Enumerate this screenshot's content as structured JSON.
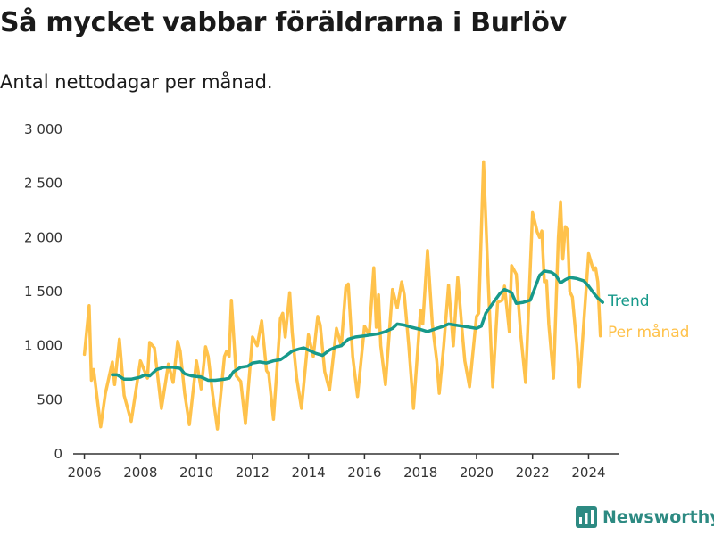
{
  "header": {
    "title": "Så mycket vabbar föräldrarna i Burlöv",
    "subtitle": "Antal nettodagar per månad."
  },
  "brand": {
    "name": "Newsworthy",
    "logo_icon": "bar-chart-logo-icon",
    "color": "#2d8a82"
  },
  "colors": {
    "monthly": "#ffc24b",
    "trend": "#17998a",
    "axis": "#333333",
    "tick_text": "#333333"
  },
  "chart_data": {
    "type": "line",
    "title": "Så mycket vabbar föräldrarna i Burlöv",
    "subtitle": "Antal nettodagar per månad.",
    "xlabel": "",
    "ylabel": "",
    "xlim": [
      2005.6,
      2025.1
    ],
    "ylim": [
      0,
      3000
    ],
    "grid": false,
    "x_ticks": [
      2006,
      2008,
      2010,
      2012,
      2014,
      2016,
      2018,
      2020,
      2022,
      2024
    ],
    "x_tick_labels": [
      "2006",
      "2008",
      "2010",
      "2012",
      "2014",
      "2016",
      "2018",
      "2020",
      "2022",
      "2024"
    ],
    "y_ticks": [
      0,
      500,
      1000,
      1500,
      2000,
      2500,
      3000
    ],
    "y_tick_labels": [
      "0",
      "500",
      "1 000",
      "1 500",
      "2 000",
      "2 500",
      "3 000"
    ],
    "legend_placement": "labels at line ends, right",
    "series": [
      {
        "name": "Per månad",
        "color": "#ffc24b",
        "points": [
          [
            2006.0,
            920
          ],
          [
            2006.17,
            1370
          ],
          [
            2006.25,
            680
          ],
          [
            2006.33,
            780
          ],
          [
            2006.58,
            250
          ],
          [
            2006.75,
            560
          ],
          [
            2007.0,
            850
          ],
          [
            2007.08,
            640
          ],
          [
            2007.25,
            1060
          ],
          [
            2007.42,
            540
          ],
          [
            2007.67,
            300
          ],
          [
            2008.0,
            860
          ],
          [
            2008.25,
            700
          ],
          [
            2008.33,
            1030
          ],
          [
            2008.5,
            980
          ],
          [
            2008.75,
            420
          ],
          [
            2009.0,
            830
          ],
          [
            2009.17,
            660
          ],
          [
            2009.33,
            1040
          ],
          [
            2009.42,
            950
          ],
          [
            2009.58,
            560
          ],
          [
            2009.75,
            270
          ],
          [
            2010.0,
            860
          ],
          [
            2010.17,
            600
          ],
          [
            2010.33,
            990
          ],
          [
            2010.42,
            900
          ],
          [
            2010.58,
            550
          ],
          [
            2010.75,
            230
          ],
          [
            2011.0,
            900
          ],
          [
            2011.08,
            950
          ],
          [
            2011.17,
            900
          ],
          [
            2011.25,
            1420
          ],
          [
            2011.42,
            720
          ],
          [
            2011.58,
            670
          ],
          [
            2011.75,
            280
          ],
          [
            2012.0,
            1080
          ],
          [
            2012.17,
            1000
          ],
          [
            2012.33,
            1230
          ],
          [
            2012.5,
            770
          ],
          [
            2012.58,
            740
          ],
          [
            2012.75,
            320
          ],
          [
            2013.0,
            1250
          ],
          [
            2013.08,
            1300
          ],
          [
            2013.17,
            1080
          ],
          [
            2013.33,
            1490
          ],
          [
            2013.42,
            1120
          ],
          [
            2013.58,
            700
          ],
          [
            2013.75,
            420
          ],
          [
            2014.0,
            1100
          ],
          [
            2014.17,
            900
          ],
          [
            2014.33,
            1270
          ],
          [
            2014.42,
            1190
          ],
          [
            2014.58,
            760
          ],
          [
            2014.75,
            590
          ],
          [
            2015.0,
            1160
          ],
          [
            2015.17,
            1000
          ],
          [
            2015.33,
            1540
          ],
          [
            2015.42,
            1570
          ],
          [
            2015.58,
            900
          ],
          [
            2015.75,
            530
          ],
          [
            2016.0,
            1180
          ],
          [
            2016.17,
            1100
          ],
          [
            2016.33,
            1720
          ],
          [
            2016.42,
            1170
          ],
          [
            2016.5,
            1470
          ],
          [
            2016.58,
            1000
          ],
          [
            2016.75,
            640
          ],
          [
            2017.0,
            1520
          ],
          [
            2017.17,
            1350
          ],
          [
            2017.33,
            1590
          ],
          [
            2017.42,
            1470
          ],
          [
            2017.58,
            1000
          ],
          [
            2017.75,
            420
          ],
          [
            2018.0,
            1330
          ],
          [
            2018.08,
            1200
          ],
          [
            2018.25,
            1880
          ],
          [
            2018.42,
            1200
          ],
          [
            2018.58,
            860
          ],
          [
            2018.67,
            560
          ],
          [
            2018.83,
            1000
          ],
          [
            2019.0,
            1560
          ],
          [
            2019.17,
            1000
          ],
          [
            2019.33,
            1630
          ],
          [
            2019.5,
            1100
          ],
          [
            2019.58,
            860
          ],
          [
            2019.75,
            620
          ],
          [
            2020.0,
            1270
          ],
          [
            2020.08,
            1300
          ],
          [
            2020.25,
            2700
          ],
          [
            2020.42,
            1580
          ],
          [
            2020.58,
            620
          ],
          [
            2020.75,
            1400
          ],
          [
            2020.92,
            1420
          ],
          [
            2021.0,
            1550
          ],
          [
            2021.17,
            1130
          ],
          [
            2021.25,
            1740
          ],
          [
            2021.42,
            1660
          ],
          [
            2021.58,
            1100
          ],
          [
            2021.75,
            660
          ],
          [
            2022.0,
            2230
          ],
          [
            2022.17,
            2050
          ],
          [
            2022.25,
            2000
          ],
          [
            2022.33,
            2060
          ],
          [
            2022.42,
            1590
          ],
          [
            2022.5,
            1600
          ],
          [
            2022.58,
            1200
          ],
          [
            2022.75,
            700
          ],
          [
            2022.92,
            2000
          ],
          [
            2023.0,
            2330
          ],
          [
            2023.08,
            1800
          ],
          [
            2023.17,
            2100
          ],
          [
            2023.25,
            2070
          ],
          [
            2023.33,
            1500
          ],
          [
            2023.42,
            1450
          ],
          [
            2023.58,
            1000
          ],
          [
            2023.67,
            620
          ],
          [
            2024.0,
            1850
          ],
          [
            2024.17,
            1700
          ],
          [
            2024.25,
            1720
          ],
          [
            2024.33,
            1590
          ],
          [
            2024.42,
            1090
          ]
        ]
      },
      {
        "name": "Trend",
        "color": "#17998a",
        "points": [
          [
            2007.0,
            730
          ],
          [
            2007.17,
            730
          ],
          [
            2007.42,
            690
          ],
          [
            2007.67,
            690
          ],
          [
            2008.0,
            710
          ],
          [
            2008.17,
            730
          ],
          [
            2008.33,
            720
          ],
          [
            2008.58,
            780
          ],
          [
            2008.83,
            800
          ],
          [
            2009.17,
            800
          ],
          [
            2009.42,
            790
          ],
          [
            2009.58,
            740
          ],
          [
            2009.83,
            720
          ],
          [
            2010.17,
            710
          ],
          [
            2010.42,
            680
          ],
          [
            2010.67,
            680
          ],
          [
            2011.0,
            690
          ],
          [
            2011.17,
            700
          ],
          [
            2011.33,
            760
          ],
          [
            2011.58,
            800
          ],
          [
            2011.83,
            810
          ],
          [
            2012.0,
            840
          ],
          [
            2012.25,
            850
          ],
          [
            2012.5,
            840
          ],
          [
            2012.75,
            860
          ],
          [
            2013.0,
            870
          ],
          [
            2013.17,
            900
          ],
          [
            2013.42,
            950
          ],
          [
            2013.67,
            970
          ],
          [
            2013.83,
            980
          ],
          [
            2014.0,
            960
          ],
          [
            2014.25,
            930
          ],
          [
            2014.5,
            910
          ],
          [
            2014.75,
            960
          ],
          [
            2015.0,
            990
          ],
          [
            2015.17,
            1000
          ],
          [
            2015.42,
            1060
          ],
          [
            2015.67,
            1080
          ],
          [
            2016.0,
            1090
          ],
          [
            2016.25,
            1100
          ],
          [
            2016.5,
            1110
          ],
          [
            2016.75,
            1130
          ],
          [
            2017.0,
            1160
          ],
          [
            2017.17,
            1200
          ],
          [
            2017.42,
            1190
          ],
          [
            2017.67,
            1170
          ],
          [
            2018.0,
            1150
          ],
          [
            2018.25,
            1130
          ],
          [
            2018.58,
            1160
          ],
          [
            2018.83,
            1180
          ],
          [
            2019.0,
            1200
          ],
          [
            2019.25,
            1190
          ],
          [
            2019.5,
            1180
          ],
          [
            2019.75,
            1170
          ],
          [
            2020.0,
            1160
          ],
          [
            2020.17,
            1180
          ],
          [
            2020.33,
            1300
          ],
          [
            2020.58,
            1390
          ],
          [
            2020.83,
            1480
          ],
          [
            2021.0,
            1520
          ],
          [
            2021.25,
            1490
          ],
          [
            2021.42,
            1390
          ],
          [
            2021.67,
            1400
          ],
          [
            2021.92,
            1420
          ],
          [
            2022.08,
            1530
          ],
          [
            2022.25,
            1650
          ],
          [
            2022.42,
            1690
          ],
          [
            2022.67,
            1680
          ],
          [
            2022.83,
            1650
          ],
          [
            2023.0,
            1580
          ],
          [
            2023.17,
            1610
          ],
          [
            2023.33,
            1630
          ],
          [
            2023.58,
            1620
          ],
          [
            2023.83,
            1600
          ],
          [
            2024.0,
            1550
          ],
          [
            2024.17,
            1490
          ],
          [
            2024.33,
            1440
          ],
          [
            2024.5,
            1400
          ]
        ]
      }
    ]
  }
}
